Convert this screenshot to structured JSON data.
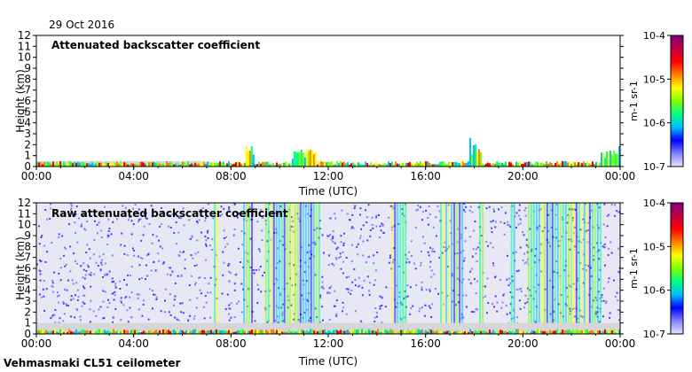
{
  "header": {
    "date": "29 Oct 2016"
  },
  "footer": {
    "instrument": "Vehmasmaki CL51 ceilometer"
  },
  "colorbar": {
    "tick_labels": [
      "10-7",
      "10-6",
      "10-5",
      "10-4"
    ],
    "label": "m-1 sr-1",
    "colors": [
      "#e6e6ff",
      "#8080ff",
      "#0000ff",
      "#00c0ff",
      "#00ff80",
      "#80ff00",
      "#ffff00",
      "#ff8000",
      "#ff0000",
      "#c00040",
      "#800080"
    ]
  },
  "chart_data": [
    {
      "type": "heatmap",
      "title": "Attenuated backscatter coefficient",
      "xlabel": "Time (UTC)",
      "ylabel": "Height (km)",
      "x_ticks": [
        "00:00",
        "04:00",
        "08:00",
        "12:00",
        "16:00",
        "20:00",
        "00:00"
      ],
      "y_ticks": [
        0,
        1,
        2,
        3,
        4,
        5,
        6,
        7,
        8,
        9,
        10,
        11,
        12
      ],
      "ylim": [
        0,
        12
      ],
      "color_scale": "log",
      "clim": [
        1e-07,
        0.0001
      ],
      "features": [
        {
          "x": [
            8.6,
            8.9
          ],
          "y": [
            0,
            2.0
          ],
          "value": 3e-06
        },
        {
          "x": [
            10.5,
            11.5
          ],
          "y": [
            0,
            1.6
          ],
          "value": 5e-06
        },
        {
          "x": [
            17.8,
            18.3
          ],
          "y": [
            0,
            2.8
          ],
          "value": 3e-06
        },
        {
          "x": [
            23.2,
            24.0
          ],
          "y": [
            0,
            2.0
          ],
          "value": 5e-06
        }
      ]
    },
    {
      "type": "heatmap",
      "title": "Raw attenuated backscatter coefficient",
      "xlabel": "Time (UTC)",
      "ylabel": "Height (km)",
      "x_ticks": [
        "00:00",
        "04:00",
        "08:00",
        "12:00",
        "16:00",
        "20:00",
        "00:00"
      ],
      "y_ticks": [
        0,
        1,
        2,
        3,
        4,
        5,
        6,
        7,
        8,
        9,
        10,
        11,
        12
      ],
      "ylim": [
        0,
        12
      ],
      "color_scale": "log",
      "clim": [
        1e-07,
        0.0001
      ]
    }
  ]
}
